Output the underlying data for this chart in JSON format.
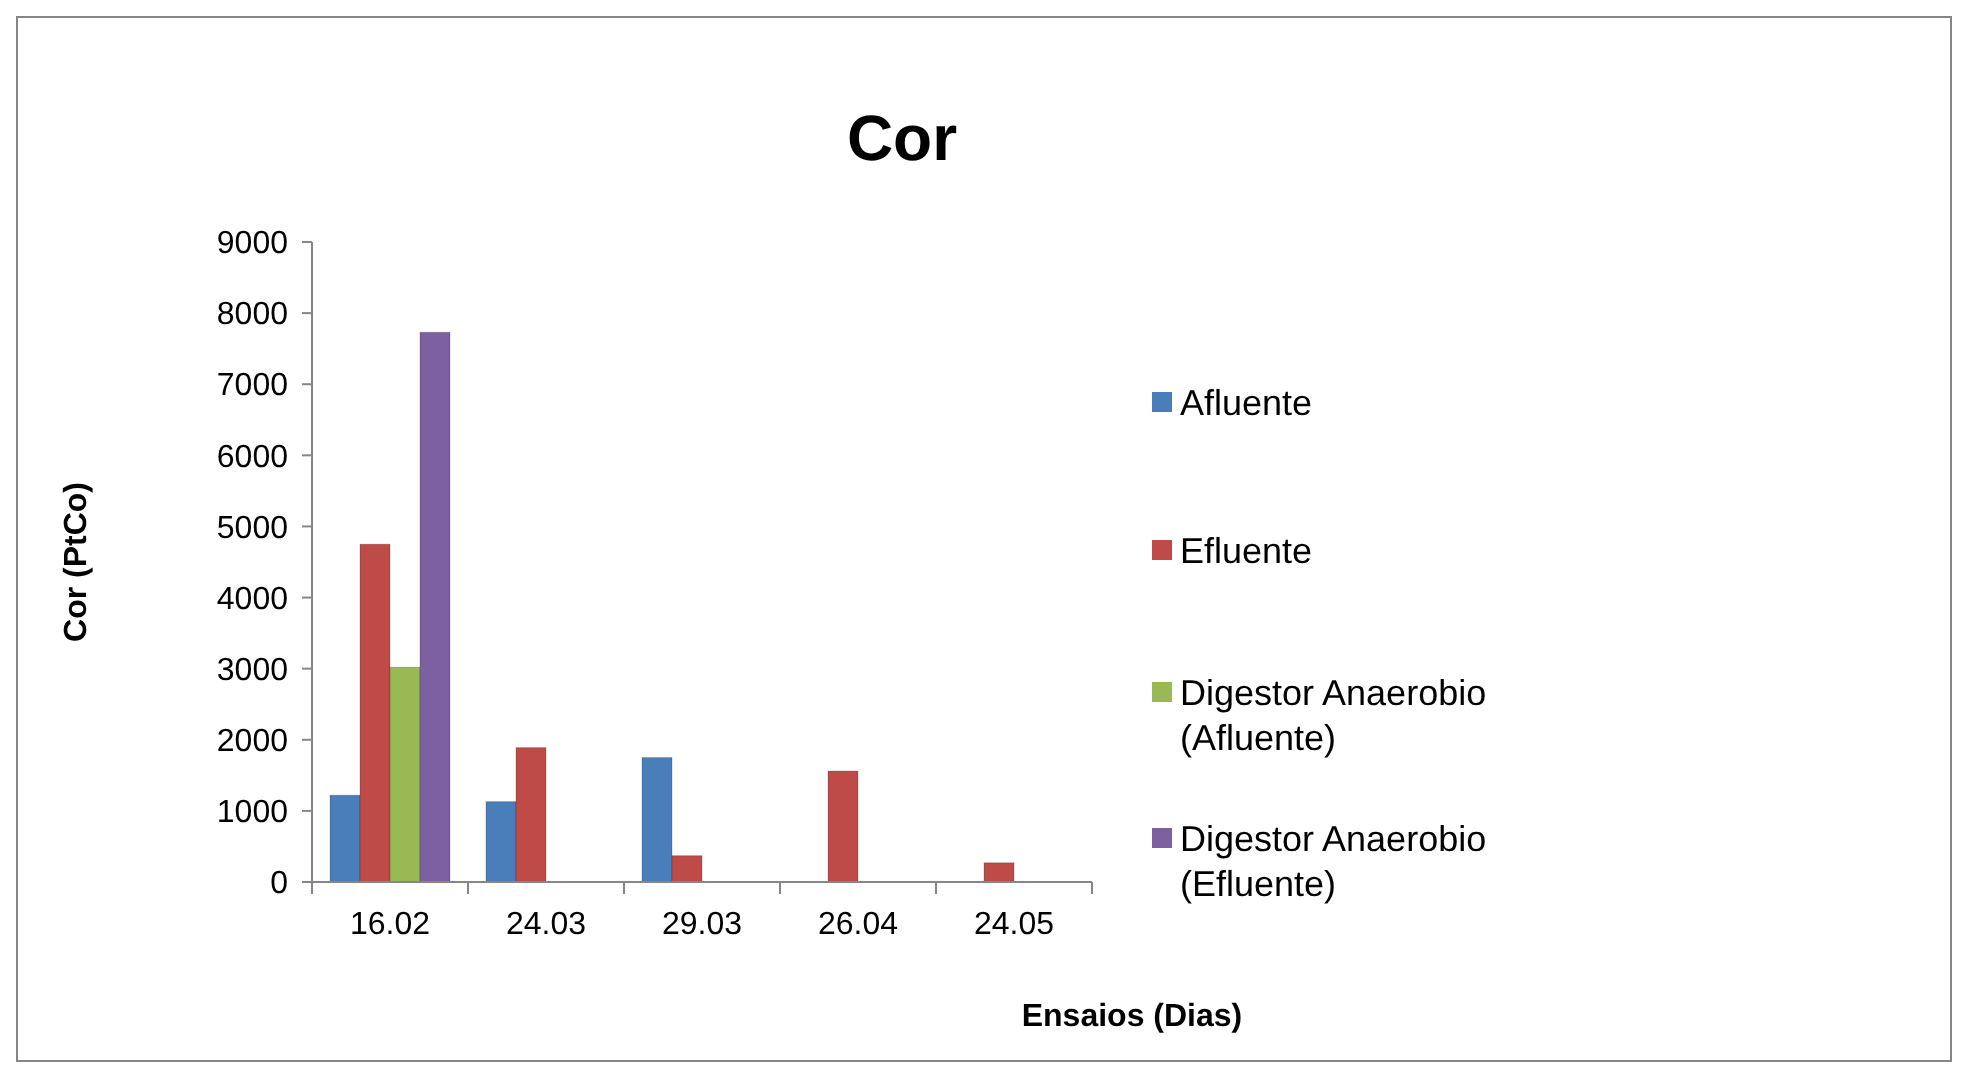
{
  "chart_data": {
    "type": "bar",
    "title": "Cor",
    "xlabel": "Ensaios (Dias)",
    "ylabel": "Cor (PtCo)",
    "categories": [
      "16.02",
      "24.03",
      "29.03",
      "26.04",
      "24.05"
    ],
    "series": [
      {
        "name": "Afluente",
        "color": "#4a7ebb",
        "values": [
          1220,
          1130,
          1750,
          null,
          null
        ]
      },
      {
        "name": "Efluente",
        "color": "#be4b48",
        "values": [
          4750,
          1890,
          370,
          1560,
          270
        ]
      },
      {
        "name": "Digestor Anaerobio (Afluente)",
        "color": "#98b954",
        "values": [
          3020,
          null,
          null,
          null,
          null
        ]
      },
      {
        "name": "Digestor Anaerobio (Efluente)",
        "color": "#7d60a0",
        "values": [
          7730,
          null,
          null,
          null,
          null
        ]
      }
    ],
    "ylim": [
      0,
      9000
    ],
    "yticks": [
      0,
      1000,
      2000,
      3000,
      4000,
      5000,
      6000,
      7000,
      8000,
      9000
    ],
    "grid": false,
    "legend": "right"
  }
}
